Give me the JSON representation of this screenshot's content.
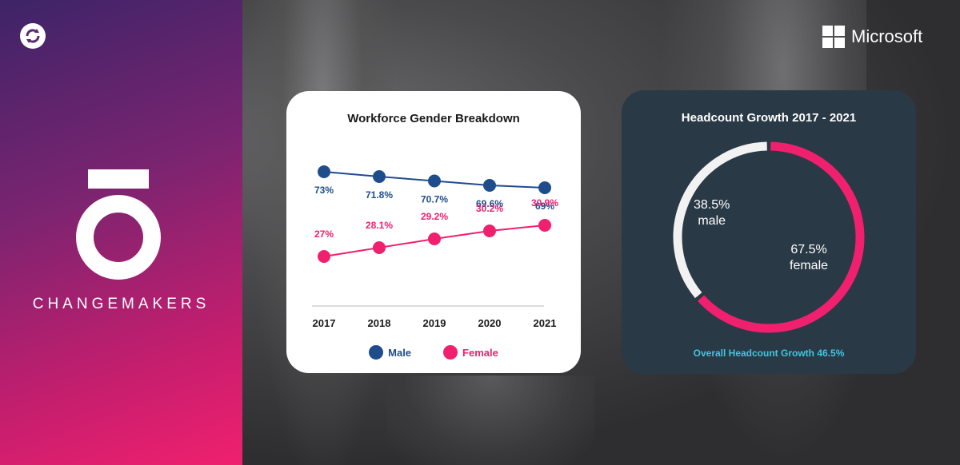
{
  "brand": {
    "name": "CHANGEMAKERS"
  },
  "partner": {
    "name": "Microsoft"
  },
  "colors": {
    "male": "#1f4d8c",
    "female": "#f0206e",
    "donut_male": "#f2f2f2",
    "accent": "#3fc7e0"
  },
  "chart_data": [
    {
      "type": "line",
      "title": "Workforce Gender Breakdown",
      "x": [
        "2017",
        "2018",
        "2019",
        "2020",
        "2021"
      ],
      "series": [
        {
          "name": "Male",
          "values": [
            73,
            71.8,
            70.7,
            69.6,
            69
          ],
          "labels": [
            "73%",
            "71.8%",
            "70.7%",
            "69.6%",
            "69%"
          ]
        },
        {
          "name": "Female",
          "values": [
            27,
            28.1,
            29.2,
            30.2,
            30.9
          ],
          "labels": [
            "27%",
            "28.1%",
            "29.2%",
            "30.2%",
            "30.9%"
          ]
        }
      ],
      "legend": "bottom"
    },
    {
      "type": "pie",
      "title": "Headcount Growth 2017 - 2021",
      "slices": [
        {
          "value": 38.5,
          "pct_label": "38.5%",
          "label": "male"
        },
        {
          "value": 67.5,
          "pct_label": "67.5%",
          "label": "female"
        }
      ],
      "annotation": "Overall Headcount Growth 46.5%"
    }
  ]
}
